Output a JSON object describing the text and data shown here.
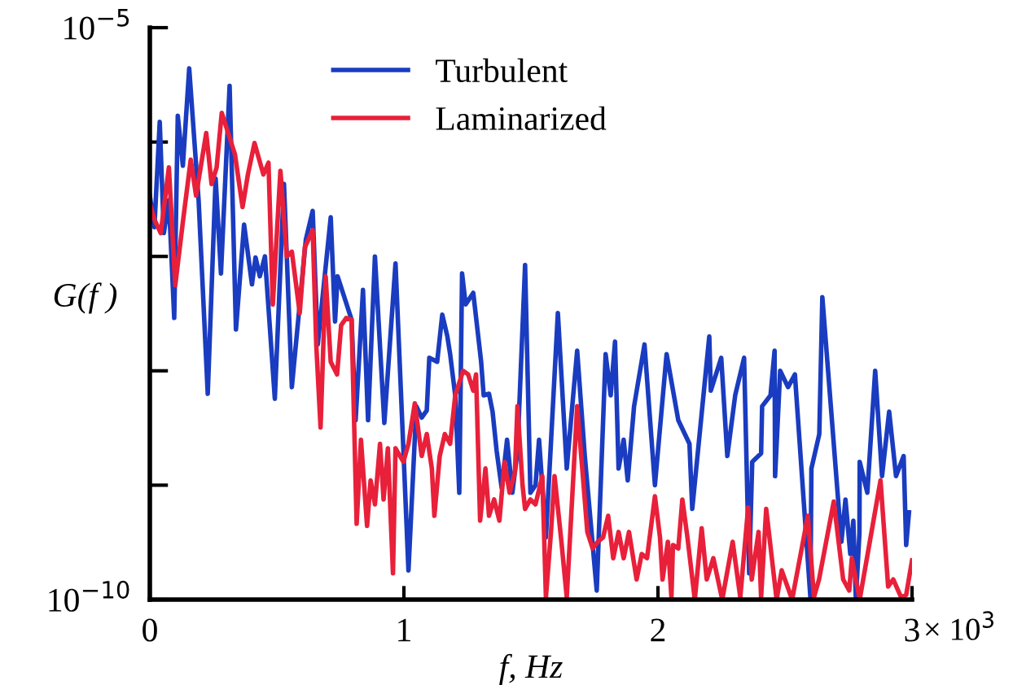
{
  "chart_data": {
    "type": "line",
    "xlabel": "f, Hz",
    "ylabel": "G(f )",
    "log": "y",
    "xlim": [
      0,
      3
    ],
    "ylim": [
      1e-10,
      1e-05
    ],
    "xticks": [
      0,
      1,
      2,
      3
    ],
    "annotations": [
      "× 10$^{3}$"
    ],
    "yticks": [
      {
        "value": 1e-10,
        "label": "10$^{−10}$"
      },
      {
        "value": 1e-09,
        "label": null
      },
      {
        "value": 1e-08,
        "label": null
      },
      {
        "value": 1e-07,
        "label": null
      },
      {
        "value": 1e-06,
        "label": null
      },
      {
        "value": 1e-05,
        "label": "10$^{−5}$"
      }
    ],
    "grid": false,
    "legend": "top",
    "marker": "none",
    "line_style": "solid",
    "series": [
      {
        "name": "Turbulent",
        "color": "#1a3cc0",
        "x": [
          0,
          0.018,
          0.039,
          0.055,
          0.075,
          0.096,
          0.11,
          0.13,
          0.155,
          0.192,
          0.228,
          0.259,
          0.28,
          0.314,
          0.339,
          0.371,
          0.402,
          0.416,
          0.433,
          0.453,
          0.492,
          0.528,
          0.559,
          0.614,
          0.641,
          0.661,
          0.712,
          0.729,
          0.739,
          0.794,
          0.81,
          0.839,
          0.859,
          0.886,
          0.923,
          0.967,
          1.018,
          1.049,
          1.07,
          1.09,
          1.1,
          1.131,
          1.151,
          1.171,
          1.182,
          1.202,
          1.218,
          1.229,
          1.243,
          1.273,
          1.304,
          1.314,
          1.335,
          1.349,
          1.365,
          1.385,
          1.406,
          1.427,
          1.447,
          1.477,
          1.498,
          1.518,
          1.532,
          1.559,
          1.606,
          1.641,
          1.682,
          1.712,
          1.759,
          1.794,
          1.814,
          1.831,
          1.845,
          1.865,
          1.881,
          1.906,
          1.947,
          1.988,
          2.034,
          2.08,
          2.124,
          2.135,
          2.202,
          2.208,
          2.249,
          2.273,
          2.304,
          2.339,
          2.359,
          2.371,
          2.406,
          2.41,
          2.443,
          2.459,
          2.461,
          2.481,
          2.512,
          2.539,
          2.6,
          2.604,
          2.635,
          2.647,
          2.722,
          2.738,
          2.757,
          2.769,
          2.779,
          2.793,
          2.794,
          2.824,
          2.855,
          2.882,
          2.91,
          2.937,
          2.967,
          2.977,
          2.988
        ],
        "values": [
          3.4e-07,
          1.8e-07,
          1.5e-06,
          1.6e-07,
          3.1e-07,
          2.9e-08,
          1.7e-06,
          6.2e-07,
          4.4e-06,
          3.1e-07,
          6.3e-09,
          4.8e-07,
          7.1e-08,
          3.1e-06,
          2.3e-08,
          1.9e-07,
          5.7e-08,
          9.8e-08,
          6.7e-08,
          1e-07,
          5.7e-09,
          4.3e-07,
          7.2e-09,
          1.4e-07,
          2.5e-07,
          1.7e-08,
          2.2e-07,
          2.7e-08,
          6.7e-08,
          2.8e-08,
          3.7e-09,
          5.1e-08,
          3.7e-09,
          1e-07,
          3.5e-09,
          8.7e-08,
          1.8e-10,
          4.9e-09,
          3.9e-09,
          4.5e-09,
          1.3e-08,
          1.2e-08,
          3.1e-08,
          2e-08,
          1.4e-08,
          6.1e-09,
          8.6e-10,
          7.1e-08,
          3.8e-08,
          4.8e-08,
          1.2e-08,
          6.1e-09,
          6.3e-09,
          4.4e-09,
          2e-09,
          9.4e-10,
          2.5e-09,
          8.6e-10,
          2e-09,
          8.4e-08,
          8.6e-10,
          1e-09,
          2.5e-09,
          3.5e-10,
          3.2e-08,
          1.4e-09,
          1.5e-08,
          1.8e-09,
          1.2e-10,
          1.4e-08,
          6.1e-09,
          1.8e-08,
          1.4e-09,
          2.5e-09,
          1.1e-09,
          4.9e-09,
          1.7e-08,
          1e-09,
          1.4e-08,
          3.7e-09,
          2.3e-09,
          6.2e-10,
          2e-08,
          6.7e-09,
          1.3e-08,
          1.8e-09,
          6.1e-09,
          1.3e-08,
          1.7e-10,
          1.6e-09,
          1.9e-09,
          4.9e-09,
          6.1e-09,
          1.5e-08,
          1.2e-09,
          1e-08,
          7.2e-09,
          9.3e-09,
          1.05e-10,
          1.4e-09,
          2.8e-09,
          4.4e-08,
          3.2e-10,
          7.5e-10,
          2.5e-10,
          4.9e-10,
          1e-10,
          3.8e-10,
          1.6e-09,
          8.6e-10,
          1e-08,
          1.2e-09,
          4.4e-09,
          1.2e-09,
          1.8e-09,
          3e-10,
          5.8e-10
        ]
      },
      {
        "name": "Laminarized",
        "color": "#e8203a",
        "x": [
          0,
          0.018,
          0.043,
          0.075,
          0.1,
          0.13,
          0.161,
          0.182,
          0.222,
          0.243,
          0.263,
          0.283,
          0.335,
          0.365,
          0.386,
          0.412,
          0.447,
          0.467,
          0.484,
          0.514,
          0.539,
          0.559,
          0.59,
          0.61,
          0.641,
          0.655,
          0.672,
          0.692,
          0.712,
          0.737,
          0.753,
          0.773,
          0.794,
          0.814,
          0.831,
          0.855,
          0.869,
          0.886,
          0.906,
          0.92,
          0.937,
          0.957,
          0.967,
          0.998,
          1.018,
          1.043,
          1.07,
          1.09,
          1.11,
          1.12,
          1.141,
          1.161,
          1.182,
          1.202,
          1.233,
          1.253,
          1.273,
          1.284,
          1.3,
          1.321,
          1.335,
          1.355,
          1.376,
          1.396,
          1.416,
          1.437,
          1.447,
          1.467,
          1.477,
          1.498,
          1.518,
          1.545,
          1.559,
          1.579,
          1.593,
          1.62,
          1.641,
          1.661,
          1.682,
          1.702,
          1.722,
          1.743,
          1.763,
          1.784,
          1.804,
          1.824,
          1.845,
          1.865,
          1.886,
          1.916,
          1.936,
          1.957,
          1.988,
          2.008,
          2.018,
          2.039,
          2.053,
          2.059,
          2.08,
          2.096,
          2.116,
          2.145,
          2.172,
          2.192,
          2.218,
          2.253,
          2.294,
          2.324,
          2.355,
          2.369,
          2.396,
          2.406,
          2.426,
          2.467,
          2.487,
          2.528,
          2.59,
          2.614,
          2.634,
          2.692,
          2.729,
          2.753,
          2.763,
          2.794,
          2.876,
          2.906,
          2.926,
          2.957,
          2.977,
          3.0
        ],
        "values": [
          2.9e-07,
          2.1e-07,
          1.6e-07,
          6e-07,
          5.6e-08,
          2e-07,
          7e-07,
          3.4e-07,
          1.2e-06,
          4.3e-07,
          6e-07,
          1.8e-06,
          7.8e-07,
          2.7e-07,
          5.2e-07,
          9.8e-07,
          5.2e-07,
          6.6e-07,
          3.8e-08,
          5.6e-07,
          1e-07,
          1.1e-07,
          3.2e-08,
          1.2e-07,
          1.7e-07,
          1.7e-08,
          3.2e-09,
          6.7e-08,
          1.2e-08,
          9.3e-09,
          2.5e-08,
          2.9e-08,
          2.8e-08,
          4.6e-10,
          2.5e-09,
          4.4e-10,
          1.1e-09,
          6.8e-10,
          2.3e-09,
          7.5e-10,
          2.1e-09,
          1.7e-10,
          2.1e-09,
          1.6e-09,
          2.3e-09,
          5.2e-09,
          1.8e-09,
          2.8e-09,
          1.4e-09,
          5.4e-10,
          1.8e-09,
          2.8e-09,
          2.3e-09,
          6.1e-09,
          1e-08,
          9.3e-09,
          6.7e-09,
          9.3e-09,
          4.9e-10,
          1.4e-09,
          5.4e-10,
          7.5e-10,
          4.9e-10,
          1.6e-09,
          8.6e-10,
          1.3e-09,
          4.9e-09,
          1e-09,
          6.2e-10,
          7.5e-10,
          6.8e-10,
          1.2e-09,
          1.05e-10,
          3.9e-10,
          1.2e-09,
          3.2e-10,
          1.05e-10,
          6.8e-10,
          4.9e-09,
          1.4e-09,
          3.9e-10,
          2.8e-10,
          3.2e-10,
          3.5e-10,
          5.4e-10,
          2.3e-10,
          3.9e-10,
          2.3e-10,
          3.9e-10,
          1.5e-10,
          2.5e-10,
          2.3e-10,
          8e-10,
          3.5e-10,
          1.5e-10,
          3.2e-10,
          1.05e-10,
          3e-10,
          2.8e-10,
          7.5e-10,
          3.5e-10,
          1e-10,
          4.2e-10,
          1.5e-10,
          2.3e-10,
          1e-10,
          3.2e-10,
          1.05e-10,
          6.4e-10,
          1.5e-10,
          3.9e-10,
          1.05e-10,
          6.2e-10,
          1e-10,
          1.8e-10,
          1e-10,
          5.4e-10,
          1.05e-10,
          1.5e-10,
          7.2e-10,
          1.5e-10,
          1.2e-10,
          2.3e-10,
          1e-10,
          1.1e-09,
          1.3e-10,
          1.5e-10,
          1.05e-10,
          1.1e-10,
          2.2e-10
        ]
      }
    ]
  }
}
